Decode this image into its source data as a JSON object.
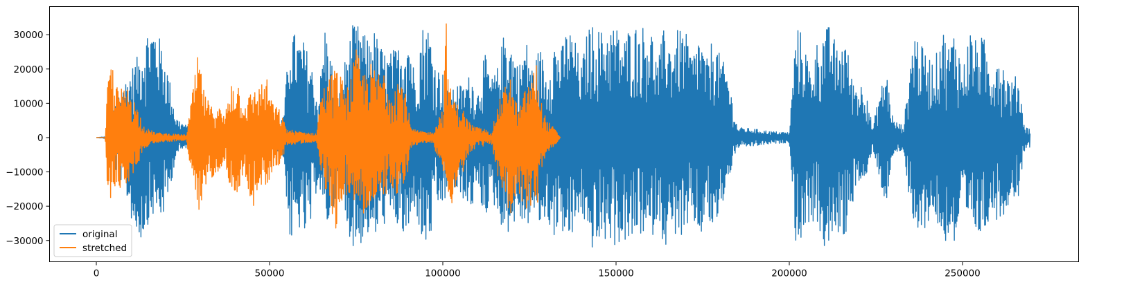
{
  "chart_data": {
    "type": "line",
    "title": "",
    "xlabel": "",
    "ylabel": "",
    "xlim": [
      -13500,
      283500
    ],
    "ylim": [
      -36200,
      38200
    ],
    "grid": false,
    "legend_position": "lower-left",
    "xticks": [
      0,
      50000,
      100000,
      150000,
      200000,
      250000
    ],
    "xtick_labels": [
      "0",
      "50000",
      "100000",
      "150000",
      "200000",
      "250000"
    ],
    "yticks": [
      -30000,
      -20000,
      -10000,
      0,
      10000,
      20000,
      30000
    ],
    "ytick_labels": [
      "−30000",
      "−20000",
      "−10000",
      "0",
      "10000",
      "20000",
      "30000"
    ],
    "series": [
      {
        "name": "original",
        "color": "#1f77b4",
        "x": [
          0,
          3000,
          5000,
          8000,
          11000,
          13000,
          15000,
          17000,
          19000,
          21000,
          23000,
          26000,
          28000,
          30000,
          33000,
          36000,
          39000,
          42000,
          45000,
          48000,
          51000,
          54000,
          56000,
          58000,
          60000,
          62000,
          64000,
          66000,
          68000,
          70000,
          72000,
          74000,
          76000,
          78000,
          80000,
          82000,
          84000,
          86000,
          88000,
          90000,
          92000,
          94000,
          96000,
          98000,
          100000,
          102000,
          104000,
          106000,
          108000,
          110000,
          112000,
          114000,
          116000,
          118000,
          120000,
          122000,
          124000,
          126000,
          128000,
          130000,
          132000,
          134000,
          136000,
          138000,
          140000,
          142000,
          144000,
          146000,
          148000,
          150000,
          152000,
          154000,
          156000,
          158000,
          160000,
          162000,
          164000,
          166000,
          168000,
          170000,
          172000,
          174000,
          176000,
          178000,
          180000,
          182000,
          185000,
          190000,
          195000,
          200000,
          202000,
          204000,
          206000,
          208000,
          210000,
          212000,
          214000,
          216000,
          218000,
          220000,
          222000,
          224000,
          226000,
          228000,
          230000,
          233000,
          236000,
          238000,
          240000,
          242000,
          244000,
          246000,
          248000,
          250000,
          252000,
          254000,
          256000,
          258000,
          260000,
          262000,
          264000,
          266000,
          268000,
          269500
        ],
        "amp_max": [
          0,
          300,
          11000,
          16000,
          22000,
          26000,
          32800,
          32800,
          27000,
          18000,
          6000,
          3500,
          2500,
          5000,
          3000,
          4000,
          3000,
          3200,
          3000,
          2500,
          2500,
          6000,
          32800,
          29000,
          28000,
          22000,
          10000,
          32800,
          22000,
          12000,
          24000,
          32800,
          32800,
          29000,
          32000,
          27000,
          24000,
          26000,
          27000,
          32000,
          18000,
          32800,
          32800,
          21000,
          19000,
          12000,
          16000,
          15000,
          19000,
          13000,
          25000,
          17000,
          21000,
          32800,
          27000,
          21000,
          29000,
          20000,
          27000,
          18000,
          29000,
          25000,
          32800,
          29000,
          21000,
          32800,
          32800,
          31000,
          32800,
          32800,
          28000,
          32800,
          32800,
          32800,
          32800,
          22000,
          32800,
          27000,
          32000,
          31000,
          24000,
          31000,
          22000,
          30000,
          24000,
          20000,
          3000,
          2500,
          1800,
          1500,
          32800,
          30000,
          20000,
          28000,
          32000,
          32800,
          25000,
          31000,
          18000,
          15000,
          17000,
          2500,
          13000,
          20000,
          5000,
          3500,
          32800,
          27000,
          24000,
          22000,
          32800,
          27000,
          32800,
          19000,
          32000,
          28000,
          30000,
          20000,
          26000,
          21000,
          16000,
          19000,
          3000,
          2800
        ],
        "amp_min": [
          0,
          -300,
          -9000,
          -14000,
          -28000,
          -30000,
          -25000,
          -22000,
          -24000,
          -17000,
          -5000,
          -3000,
          -2500,
          -5000,
          -3000,
          -4000,
          -3000,
          -3200,
          -3000,
          -2500,
          -2500,
          -6000,
          -32000,
          -26000,
          -29000,
          -26000,
          -12000,
          -27000,
          -23000,
          -14000,
          -25000,
          -32000,
          -32000,
          -28000,
          -31000,
          -26000,
          -25000,
          -24000,
          -29000,
          -30000,
          -20000,
          -32000,
          -32000,
          -21000,
          -20000,
          -15000,
          -17000,
          -18000,
          -22000,
          -15000,
          -24000,
          -18000,
          -23000,
          -29000,
          -26000,
          -24000,
          -27000,
          -22000,
          -26000,
          -24000,
          -29000,
          -26000,
          -32000,
          -28000,
          -21000,
          -32500,
          -32500,
          -31000,
          -30000,
          -32000,
          -30000,
          -32500,
          -28000,
          -29000,
          -31000,
          -23000,
          -32500,
          -29000,
          -28000,
          -32000,
          -23000,
          -31000,
          -23000,
          -28000,
          -23000,
          -14000,
          -3000,
          -2500,
          -1800,
          -1500,
          -32500,
          -29000,
          -24000,
          -26000,
          -32500,
          -32500,
          -28000,
          -30000,
          -20000,
          -13000,
          -15000,
          -2500,
          -12000,
          -21000,
          -5000,
          -3500,
          -32500,
          -28000,
          -25000,
          -22000,
          -32500,
          -29000,
          -32500,
          -20000,
          -29000,
          -28000,
          -30000,
          -22000,
          -24000,
          -23000,
          -17000,
          -18000,
          -3000,
          -2800
        ]
      },
      {
        "name": "stretched",
        "color": "#ff7f0e",
        "x": [
          0,
          2500,
          3500,
          4500,
          6000,
          8000,
          9500,
          11000,
          14000,
          17000,
          20000,
          23000,
          26000,
          28000,
          29500,
          31000,
          33000,
          35000,
          37000,
          39000,
          41000,
          43000,
          45000,
          47000,
          49000,
          51000,
          53000,
          55000,
          58000,
          61000,
          63500,
          65000,
          67000,
          69000,
          71000,
          73000,
          75000,
          77000,
          79000,
          81000,
          83000,
          85000,
          87000,
          89000,
          91000,
          94000,
          97000,
          100000,
          101000,
          102000,
          104000,
          106000,
          108000,
          110000,
          112000,
          114000,
          116000,
          118000,
          119000,
          120000,
          122000,
          124000,
          126000,
          127000,
          128000,
          130000,
          132000,
          134000
        ],
        "amp_max": [
          0,
          0,
          20000,
          22000,
          15000,
          14000,
          15000,
          11000,
          3000,
          1500,
          1200,
          1000,
          800,
          15000,
          25000,
          14000,
          9000,
          10000,
          6000,
          17000,
          16000,
          10000,
          14000,
          15000,
          18000,
          10000,
          8000,
          2500,
          1800,
          1500,
          1200,
          14000,
          17000,
          21000,
          17000,
          15000,
          26000,
          19000,
          22000,
          19000,
          20000,
          14000,
          18000,
          15000,
          2500,
          1800,
          1500,
          9000,
          34000,
          15000,
          10000,
          8000,
          4000,
          3000,
          2500,
          1500,
          10000,
          15000,
          23000,
          14000,
          8000,
          15000,
          18000,
          23000,
          12000,
          5000,
          3000,
          0
        ],
        "amp_min": [
          0,
          0,
          -21000,
          -16000,
          -14000,
          -16000,
          -13000,
          -10000,
          -3000,
          -1500,
          -1200,
          -1000,
          -800,
          -16000,
          -26500,
          -15000,
          -12000,
          -10000,
          -7000,
          -16000,
          -16000,
          -11000,
          -22000,
          -14000,
          -15000,
          -9000,
          -8000,
          -2500,
          -1800,
          -1500,
          -1200,
          -14000,
          -16000,
          -27500,
          -18000,
          -16000,
          -21000,
          -22000,
          -22000,
          -20000,
          -18000,
          -13000,
          -20000,
          -16000,
          -2500,
          -1800,
          -1500,
          -10000,
          -14000,
          -22000,
          -13000,
          -10000,
          -4000,
          -3000,
          -2500,
          -1500,
          -13000,
          -16000,
          -27500,
          -20000,
          -16000,
          -24000,
          -20000,
          -23000,
          -13000,
          -5000,
          -3000,
          0
        ]
      }
    ]
  }
}
